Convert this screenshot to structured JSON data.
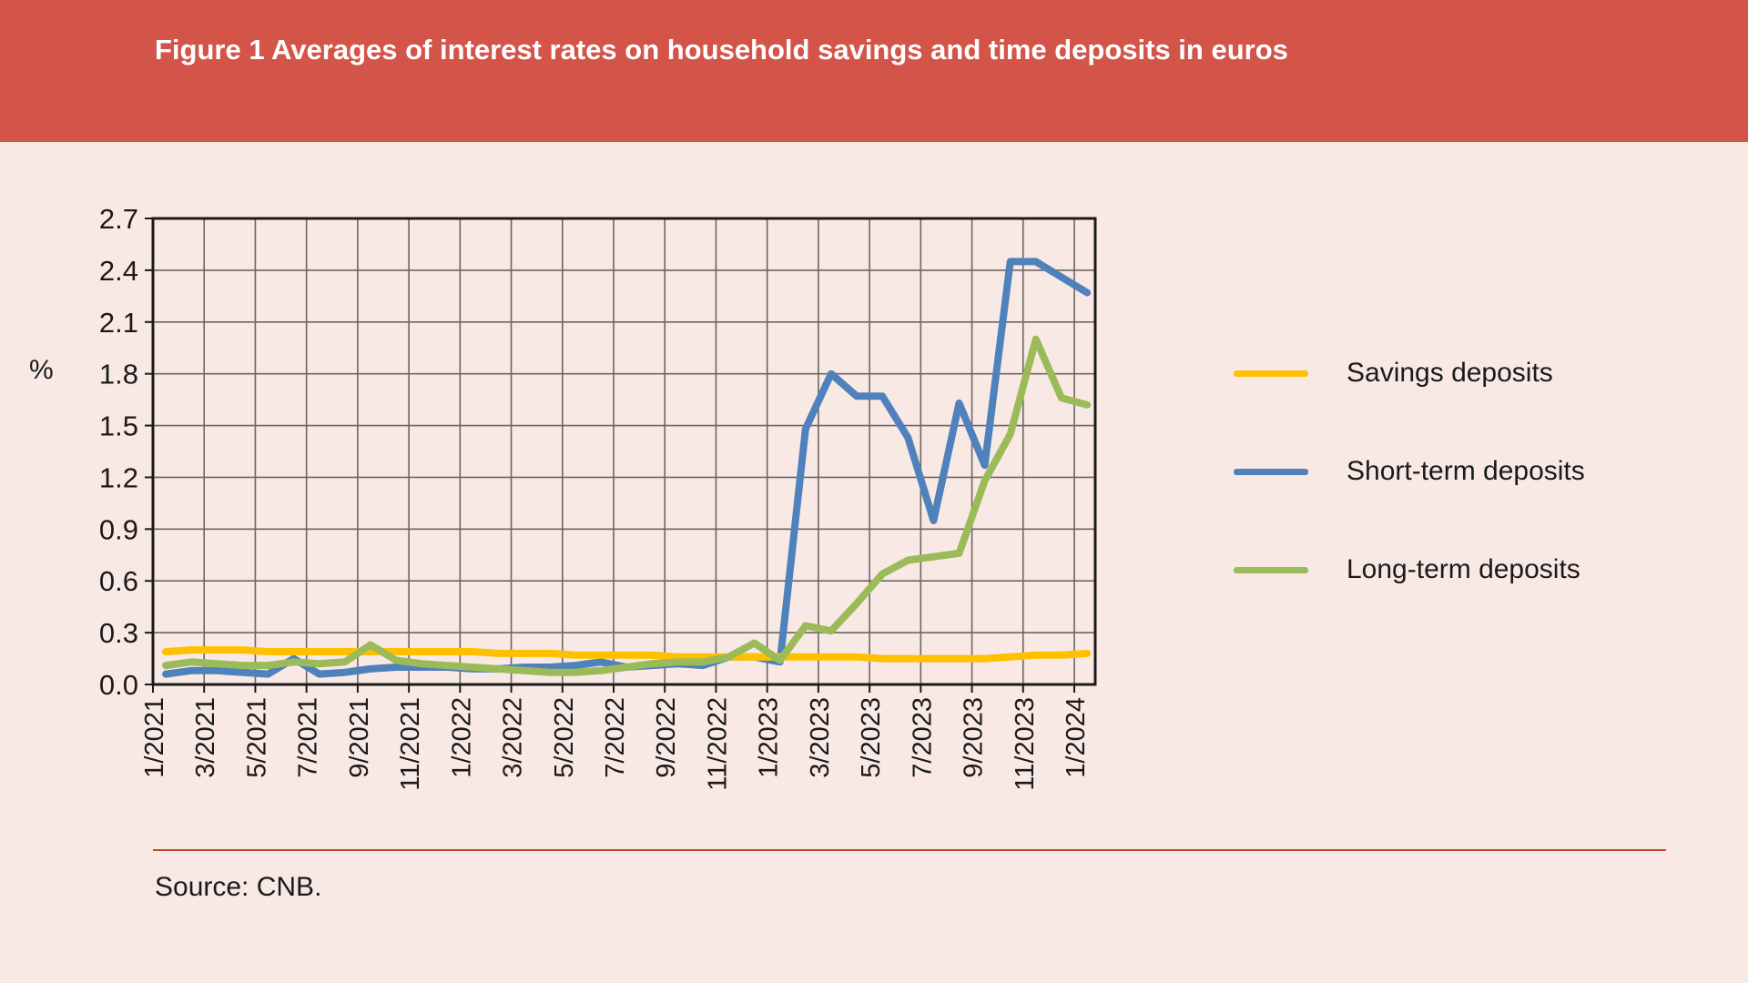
{
  "header": {
    "title": "Figure 1 Averages of interest rates on household savings and time deposits in euros",
    "banner_color": "#D35449",
    "title_color": "#FFFFFF"
  },
  "page": {
    "background_color": "#F9E9E5",
    "rule_color": "#C8432F",
    "text_color": "#1A1A1A"
  },
  "source": {
    "text": "Source: CNB."
  },
  "axis": {
    "unit_label": "%"
  },
  "chart_data": {
    "type": "line",
    "title": "Figure 1 Averages of interest rates on household savings and time deposits in euros",
    "xlabel": "",
    "ylabel": "%",
    "ylim": [
      0,
      2.7
    ],
    "ytick_step": 0.3,
    "y_tick_labels": [
      "0.0",
      "0.3",
      "0.6",
      "0.9",
      "1.2",
      "1.5",
      "1.8",
      "2.1",
      "2.4",
      "2.7"
    ],
    "x_tick_labels": [
      "1/2021",
      "3/2021",
      "5/2021",
      "7/2021",
      "9/2021",
      "11/2021",
      "1/2022",
      "3/2022",
      "5/2022",
      "7/2022",
      "9/2022",
      "11/2022",
      "1/2023",
      "3/2023",
      "5/2023",
      "7/2023",
      "9/2023",
      "11/2023",
      "1/2024"
    ],
    "x": [
      "1/2021",
      "2/2021",
      "3/2021",
      "4/2021",
      "5/2021",
      "6/2021",
      "7/2021",
      "8/2021",
      "9/2021",
      "10/2021",
      "11/2021",
      "12/2021",
      "1/2022",
      "2/2022",
      "3/2022",
      "4/2022",
      "5/2022",
      "6/2022",
      "7/2022",
      "8/2022",
      "9/2022",
      "10/2022",
      "11/2022",
      "12/2022",
      "1/2023",
      "2/2023",
      "3/2023",
      "4/2023",
      "5/2023",
      "6/2023",
      "7/2023",
      "8/2023",
      "9/2023",
      "10/2023",
      "11/2023",
      "12/2023",
      "1/2024"
    ],
    "grid": true,
    "legend_position": "right",
    "grid_color": "#6B6663",
    "border_color": "#1A1A1A",
    "series": [
      {
        "name": "Savings deposits",
        "color": "#FFC000",
        "values": [
          0.19,
          0.2,
          0.2,
          0.2,
          0.19,
          0.19,
          0.19,
          0.19,
          0.19,
          0.19,
          0.19,
          0.19,
          0.19,
          0.18,
          0.18,
          0.18,
          0.17,
          0.17,
          0.17,
          0.17,
          0.16,
          0.16,
          0.16,
          0.16,
          0.16,
          0.16,
          0.16,
          0.16,
          0.15,
          0.15,
          0.15,
          0.15,
          0.15,
          0.16,
          0.17,
          0.17,
          0.18
        ]
      },
      {
        "name": "Short-term deposits",
        "color": "#4F81BD",
        "values": [
          0.06,
          0.08,
          0.08,
          0.07,
          0.06,
          0.15,
          0.06,
          0.07,
          0.09,
          0.1,
          0.1,
          0.1,
          0.09,
          0.09,
          0.1,
          0.1,
          0.11,
          0.13,
          0.1,
          0.11,
          0.12,
          0.11,
          0.16,
          0.16,
          0.13,
          1.48,
          1.8,
          1.67,
          1.67,
          1.43,
          0.95,
          1.63,
          1.27,
          2.45,
          2.45,
          2.36,
          2.27
        ]
      },
      {
        "name": "Long-term deposits",
        "color": "#9BBB59",
        "values": [
          0.11,
          0.13,
          0.12,
          0.11,
          0.11,
          0.13,
          0.12,
          0.13,
          0.23,
          0.14,
          0.12,
          0.11,
          0.1,
          0.09,
          0.08,
          0.07,
          0.07,
          0.08,
          0.1,
          0.12,
          0.13,
          0.13,
          0.16,
          0.24,
          0.14,
          0.34,
          0.31,
          0.47,
          0.64,
          0.72,
          0.74,
          0.76,
          1.18,
          1.45,
          2.0,
          1.66,
          1.62
        ]
      }
    ]
  }
}
